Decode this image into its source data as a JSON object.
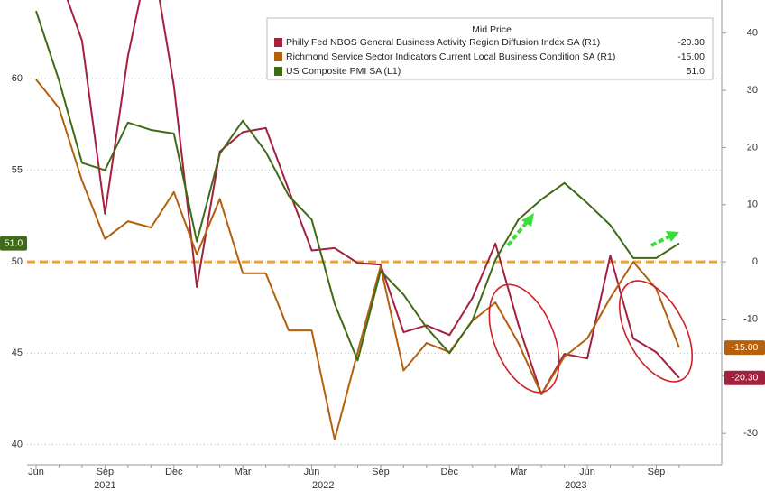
{
  "chart_data": {
    "type": "line",
    "legend_title": "Mid Price",
    "categories": [
      "Jun",
      null,
      null,
      "Sep",
      null,
      null,
      "Dec",
      null,
      null,
      "Mar",
      null,
      null,
      "Jun",
      null,
      null,
      "Sep",
      null,
      null,
      "Dec",
      null,
      null,
      "Mar",
      null,
      null,
      "Jun",
      null,
      null,
      "Sep",
      null
    ],
    "x_groups": [
      {
        "label": "2021",
        "first": 0,
        "last": 6
      },
      {
        "label": "2022",
        "first": 7,
        "last": 18
      },
      {
        "label": "2023",
        "first": 19,
        "last": 28
      }
    ],
    "series": [
      {
        "name": "Philly Fed NBOS General Business Activity Region Diffusion Index SA  (R1)",
        "last_label": "-20.30",
        "color": "#a3203f",
        "axis": "y2",
        "values": [
          60,
          50,
          38.7,
          8.4,
          36,
          55,
          30.8,
          -4.4,
          19.3,
          22.7,
          23.4,
          12.6,
          2,
          2.4,
          -0.2,
          -0.5,
          -12.3,
          -11.1,
          -12.8,
          -6.3,
          3.2,
          -11,
          -23.2,
          -16.1,
          -16.9,
          1.1,
          -13.4,
          -15.8,
          -20.3
        ]
      },
      {
        "name": "Richmond Service Sector Indicators Current Local Business Condition SA  (R1)",
        "last_label": "-15.00",
        "color": "#b3600f",
        "axis": "y2",
        "values": [
          31.9,
          26.9,
          14.2,
          4,
          7.1,
          6,
          12.2,
          1.3,
          11,
          -2,
          -2,
          -12,
          -12,
          -31.1,
          -15.8,
          -0.8,
          -19,
          -14.2,
          -15.8,
          -10.3,
          -7.1,
          -14.2,
          -23.2,
          -16.6,
          -13.4,
          -6.3,
          0,
          -4.7,
          -15
        ]
      },
      {
        "name": "US Composite PMI SA  (L1)",
        "last_label": "51.0",
        "color": "#3f6b16",
        "axis": "y",
        "values": [
          63.7,
          59.9,
          55.4,
          55.0,
          57.6,
          57.2,
          57.0,
          51.1,
          55.9,
          57.7,
          56.0,
          53.6,
          52.3,
          47.7,
          44.6,
          49.5,
          48.2,
          46.4,
          45.0,
          46.8,
          50.1,
          52.3,
          53.4,
          54.3,
          53.2,
          52.0,
          50.2,
          50.2,
          51.0
        ]
      }
    ],
    "ylim": [
      38.9,
      64.3
    ],
    "yticks": [
      40,
      45,
      50,
      55,
      60
    ],
    "y2lim": [
      -35.5,
      45.8
    ],
    "y2ticks": [
      -30,
      -20,
      -10,
      0,
      10,
      20,
      30,
      40
    ],
    "reference_line": {
      "axis": "y2",
      "value": 0,
      "color": "#f0a035"
    },
    "grid": true
  }
}
